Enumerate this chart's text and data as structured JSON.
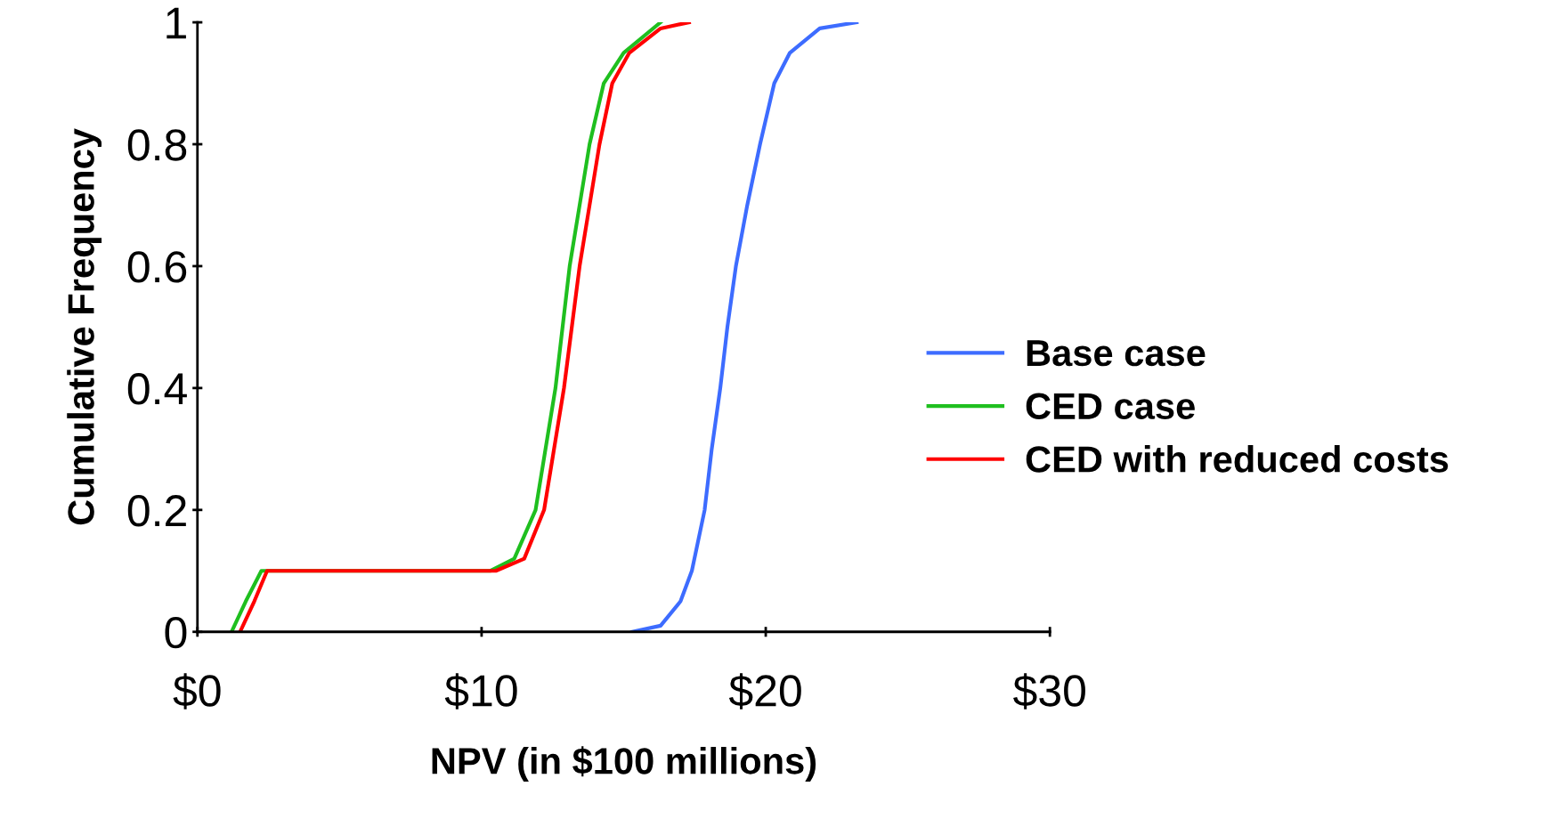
{
  "chart_data": {
    "type": "line",
    "xlabel": "NPV (in $100 millions)",
    "ylabel": "Cumulative Frequency",
    "xlim": [
      0,
      30
    ],
    "xticks": [
      {
        "value": 0,
        "label": "$0"
      },
      {
        "value": 10,
        "label": "$10"
      },
      {
        "value": 20,
        "label": "$20"
      },
      {
        "value": 30,
        "label": "$30"
      }
    ],
    "ylim": [
      0,
      1
    ],
    "yticks": [
      0,
      0.2,
      0.4,
      0.6,
      0.8,
      1
    ],
    "grid": false,
    "legend": "right",
    "marker": "none",
    "line_style": "solid",
    "series": [
      {
        "name": "Base case",
        "color": "#3d6cff",
        "x": [
          15.3,
          16.3,
          17.0,
          17.4,
          17.85,
          18.1,
          18.4,
          18.65,
          18.95,
          19.35,
          19.8,
          20.3,
          20.85,
          21.9,
          23.2
        ],
        "values": [
          0,
          0.01,
          0.05,
          0.1,
          0.2,
          0.3,
          0.4,
          0.5,
          0.6,
          0.7,
          0.8,
          0.9,
          0.95,
          0.99,
          1
        ]
      },
      {
        "name": "CED case",
        "color": "#1fbf1f",
        "x": [
          1.2,
          1.7,
          2.25,
          10.3,
          11.15,
          11.9,
          12.6,
          13.1,
          13.45,
          13.8,
          14.3,
          15.0,
          16.3
        ],
        "values": [
          0,
          0.05,
          0.1,
          0.1,
          0.12,
          0.2,
          0.4,
          0.6,
          0.7,
          0.8,
          0.9,
          0.95,
          1
        ]
      },
      {
        "name": "CED with reduced costs",
        "color": "#ff0000",
        "x": [
          1.5,
          2.0,
          2.45,
          10.5,
          11.5,
          12.2,
          12.9,
          13.45,
          13.8,
          14.15,
          14.6,
          15.2,
          16.3,
          17.3
        ],
        "values": [
          0,
          0.05,
          0.1,
          0.1,
          0.12,
          0.2,
          0.4,
          0.6,
          0.7,
          0.8,
          0.9,
          0.95,
          0.99,
          1
        ]
      }
    ]
  }
}
